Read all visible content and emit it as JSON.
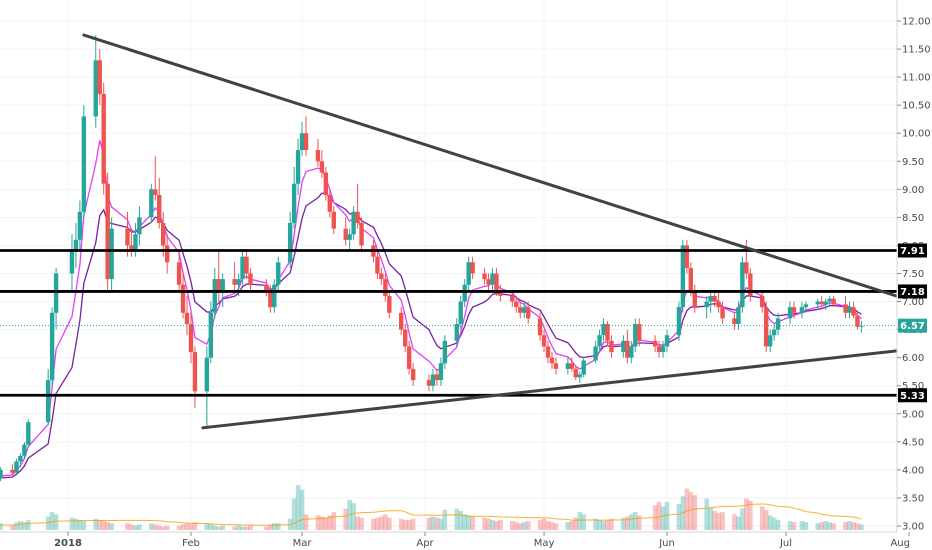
{
  "chart_data": {
    "type": "candlestick",
    "x_labels": [
      "2018",
      "Feb",
      "Mar",
      "Apr",
      "May",
      "Jun",
      "Jul",
      "Aug"
    ],
    "y_ticks": [
      "3.00",
      "3.50",
      "4.00",
      "4.50",
      "5.00",
      "5.50",
      "6.00",
      "6.50",
      "7.00",
      "7.50",
      "8.00",
      "8.50",
      "9.00",
      "9.50",
      "10.00",
      "10.50",
      "11.00",
      "11.50",
      "12.00"
    ],
    "ylim": [
      2.9,
      12.2
    ],
    "grid": true,
    "horizontal_levels": [
      {
        "label": "7.91",
        "value": 7.91
      },
      {
        "label": "7.18",
        "value": 7.18
      },
      {
        "label": "5.33",
        "value": 5.33
      }
    ],
    "last_price": {
      "label": "6.57",
      "value": 6.57
    },
    "trendlines": [
      {
        "name": "upper",
        "start": {
          "date": "2018-01-05",
          "value": 11.75
        },
        "end": {
          "date": "2018-07-31",
          "value": 7.05
        }
      },
      {
        "name": "lower",
        "start": {
          "date": "2018-02-04",
          "value": 4.75
        },
        "end": {
          "date": "2018-07-30",
          "value": 6.13
        }
      }
    ],
    "candles": [
      [
        "2017-12-12",
        3.75,
        3.85,
        3.65,
        3.8
      ],
      [
        "2017-12-13",
        3.8,
        3.95,
        3.75,
        3.9
      ],
      [
        "2017-12-14",
        3.9,
        4.0,
        3.8,
        3.85
      ],
      [
        "2017-12-15",
        3.85,
        4.05,
        3.8,
        4.0
      ],
      [
        "2017-12-18",
        4.0,
        4.1,
        3.9,
        3.95
      ],
      [
        "2017-12-19",
        3.95,
        4.2,
        3.9,
        4.15
      ],
      [
        "2017-12-20",
        4.15,
        4.3,
        4.05,
        4.25
      ],
      [
        "2017-12-21",
        4.25,
        4.5,
        4.2,
        4.45
      ],
      [
        "2017-12-22",
        4.45,
        4.9,
        4.4,
        4.85
      ],
      [
        "2017-12-27",
        4.85,
        5.8,
        4.8,
        5.6
      ],
      [
        "2017-12-28",
        5.6,
        6.9,
        5.5,
        6.8
      ],
      [
        "2017-12-29",
        6.8,
        7.6,
        6.5,
        7.5
      ],
      [
        "2018-01-02",
        7.5,
        8.2,
        7.2,
        7.9
      ],
      [
        "2018-01-03",
        7.9,
        8.4,
        7.6,
        8.1
      ],
      [
        "2018-01-04",
        8.1,
        8.8,
        7.9,
        8.6
      ],
      [
        "2018-01-05",
        8.6,
        10.5,
        8.5,
        10.3
      ],
      [
        "2018-01-08",
        10.3,
        11.75,
        10.1,
        11.3
      ],
      [
        "2018-01-09",
        11.3,
        11.5,
        10.5,
        10.7
      ],
      [
        "2018-01-10",
        10.7,
        10.9,
        8.9,
        9.1
      ],
      [
        "2018-01-11",
        9.1,
        9.3,
        7.2,
        7.4
      ],
      [
        "2018-01-12",
        7.4,
        8.5,
        7.2,
        8.3
      ],
      [
        "2018-01-16",
        8.3,
        8.6,
        7.8,
        8.0
      ],
      [
        "2018-01-17",
        8.0,
        8.3,
        7.8,
        7.9
      ],
      [
        "2018-01-18",
        7.9,
        8.4,
        7.8,
        8.2
      ],
      [
        "2018-01-19",
        8.2,
        8.7,
        8.0,
        8.5
      ],
      [
        "2018-01-22",
        8.5,
        9.1,
        8.4,
        9.0
      ],
      [
        "2018-01-23",
        9.0,
        9.6,
        8.8,
        8.9
      ],
      [
        "2018-01-24",
        8.9,
        9.2,
        8.3,
        8.4
      ],
      [
        "2018-01-25",
        8.4,
        8.6,
        7.8,
        8.0
      ],
      [
        "2018-01-26",
        8.0,
        8.2,
        7.5,
        7.7
      ],
      [
        "2018-01-29",
        7.7,
        7.9,
        7.2,
        7.3
      ],
      [
        "2018-01-30",
        7.3,
        7.5,
        6.7,
        6.8
      ],
      [
        "2018-01-31",
        6.8,
        7.1,
        6.4,
        6.6
      ],
      [
        "2018-02-01",
        6.6,
        6.8,
        5.9,
        6.1
      ],
      [
        "2018-02-02",
        6.1,
        6.2,
        5.1,
        5.4
      ],
      [
        "2018-02-05",
        5.4,
        6.2,
        4.75,
        6.0
      ],
      [
        "2018-02-06",
        6.0,
        7.0,
        5.9,
        6.8
      ],
      [
        "2018-02-07",
        6.8,
        7.6,
        6.7,
        7.4
      ],
      [
        "2018-02-08",
        7.4,
        7.9,
        7.0,
        7.2
      ],
      [
        "2018-02-09",
        7.2,
        7.5,
        6.9,
        7.4
      ],
      [
        "2018-02-12",
        7.4,
        7.7,
        7.2,
        7.3
      ],
      [
        "2018-02-13",
        7.3,
        7.5,
        7.1,
        7.4
      ],
      [
        "2018-02-14",
        7.4,
        7.9,
        7.3,
        7.8
      ],
      [
        "2018-02-15",
        7.8,
        7.9,
        7.4,
        7.5
      ],
      [
        "2018-02-16",
        7.5,
        7.6,
        7.2,
        7.3
      ],
      [
        "2018-02-20",
        7.3,
        7.4,
        7.1,
        7.2
      ],
      [
        "2018-02-21",
        7.2,
        7.3,
        6.8,
        6.9
      ],
      [
        "2018-02-22",
        6.9,
        7.4,
        6.8,
        7.3
      ],
      [
        "2018-02-23",
        7.3,
        7.8,
        7.2,
        7.7
      ],
      [
        "2018-02-26",
        7.7,
        8.6,
        7.6,
        8.4
      ],
      [
        "2018-02-27",
        8.4,
        9.4,
        8.3,
        9.1
      ],
      [
        "2018-02-28",
        9.1,
        9.9,
        8.9,
        9.7
      ],
      [
        "2018-03-01",
        9.7,
        10.2,
        9.6,
        10.0
      ],
      [
        "2018-03-02",
        10.0,
        10.3,
        9.6,
        9.7
      ],
      [
        "2018-03-05",
        9.7,
        9.9,
        9.4,
        9.5
      ],
      [
        "2018-03-06",
        9.5,
        9.7,
        9.2,
        9.3
      ],
      [
        "2018-03-07",
        9.3,
        9.4,
        8.8,
        8.9
      ],
      [
        "2018-03-08",
        8.9,
        9.0,
        8.5,
        8.6
      ],
      [
        "2018-03-09",
        8.6,
        8.7,
        8.2,
        8.3
      ],
      [
        "2018-03-12",
        8.3,
        8.5,
        8.0,
        8.1
      ],
      [
        "2018-03-13",
        8.1,
        8.3,
        7.9,
        8.2
      ],
      [
        "2018-03-14",
        8.2,
        8.7,
        8.1,
        8.6
      ],
      [
        "2018-03-15",
        8.6,
        9.1,
        8.3,
        8.4
      ],
      [
        "2018-03-16",
        8.4,
        8.5,
        7.9,
        8.0
      ],
      [
        "2018-03-19",
        8.0,
        8.1,
        7.7,
        7.8
      ],
      [
        "2018-03-20",
        7.8,
        7.9,
        7.4,
        7.5
      ],
      [
        "2018-03-21",
        7.5,
        7.6,
        7.3,
        7.4
      ],
      [
        "2018-03-22",
        7.4,
        7.5,
        7.0,
        7.1
      ],
      [
        "2018-03-23",
        7.1,
        7.2,
        6.7,
        6.8
      ],
      [
        "2018-03-26",
        6.8,
        6.9,
        6.4,
        6.5
      ],
      [
        "2018-03-27",
        6.5,
        6.6,
        6.1,
        6.2
      ],
      [
        "2018-03-28",
        6.2,
        6.3,
        5.7,
        5.8
      ],
      [
        "2018-03-29",
        5.8,
        5.9,
        5.5,
        5.6
      ],
      [
        "2018-04-02",
        5.6,
        5.7,
        5.4,
        5.5
      ],
      [
        "2018-04-03",
        5.5,
        5.8,
        5.4,
        5.7
      ],
      [
        "2018-04-04",
        5.7,
        5.8,
        5.5,
        5.6
      ],
      [
        "2018-04-05",
        5.6,
        6.0,
        5.5,
        5.9
      ],
      [
        "2018-04-06",
        5.9,
        6.4,
        5.8,
        6.3
      ],
      [
        "2018-04-09",
        6.3,
        6.7,
        6.2,
        6.6
      ],
      [
        "2018-04-10",
        6.6,
        7.1,
        6.5,
        7.0
      ],
      [
        "2018-04-11",
        7.0,
        7.4,
        6.9,
        7.3
      ],
      [
        "2018-04-12",
        7.3,
        7.8,
        7.2,
        7.7
      ],
      [
        "2018-04-13",
        7.7,
        7.8,
        7.4,
        7.5
      ],
      [
        "2018-04-16",
        7.5,
        7.6,
        7.3,
        7.4
      ],
      [
        "2018-04-17",
        7.4,
        7.5,
        7.2,
        7.3
      ],
      [
        "2018-04-18",
        7.3,
        7.6,
        7.2,
        7.5
      ],
      [
        "2018-04-19",
        7.5,
        7.6,
        7.1,
        7.2
      ],
      [
        "2018-04-20",
        7.2,
        7.3,
        7.0,
        7.1
      ],
      [
        "2018-04-23",
        7.1,
        7.2,
        6.9,
        7.0
      ],
      [
        "2018-04-24",
        7.0,
        7.1,
        6.8,
        6.9
      ],
      [
        "2018-04-25",
        6.9,
        7.0,
        6.7,
        6.8
      ],
      [
        "2018-04-26",
        6.8,
        7.0,
        6.7,
        6.9
      ],
      [
        "2018-04-27",
        6.9,
        7.0,
        6.6,
        6.7
      ],
      [
        "2018-04-30",
        6.7,
        6.8,
        6.3,
        6.4
      ],
      [
        "2018-05-01",
        6.4,
        6.5,
        6.1,
        6.2
      ],
      [
        "2018-05-02",
        6.2,
        6.3,
        5.9,
        6.0
      ],
      [
        "2018-05-03",
        6.0,
        6.1,
        5.8,
        5.9
      ],
      [
        "2018-05-04",
        5.9,
        6.0,
        5.7,
        5.8
      ],
      [
        "2018-05-07",
        5.8,
        6.0,
        5.7,
        5.9
      ],
      [
        "2018-05-08",
        5.9,
        6.0,
        5.75,
        5.8
      ],
      [
        "2018-05-09",
        5.8,
        5.85,
        5.6,
        5.65
      ],
      [
        "2018-05-10",
        5.65,
        5.75,
        5.55,
        5.7
      ],
      [
        "2018-05-11",
        5.7,
        6.0,
        5.65,
        5.95
      ],
      [
        "2018-05-14",
        5.95,
        6.3,
        5.9,
        6.2
      ],
      [
        "2018-05-15",
        6.2,
        6.5,
        6.1,
        6.4
      ],
      [
        "2018-05-16",
        6.4,
        6.7,
        6.3,
        6.6
      ],
      [
        "2018-05-17",
        6.6,
        6.65,
        6.2,
        6.3
      ],
      [
        "2018-05-18",
        6.3,
        6.4,
        6.0,
        6.1
      ],
      [
        "2018-05-21",
        6.1,
        6.4,
        6.0,
        6.3
      ],
      [
        "2018-05-22",
        6.3,
        6.5,
        5.9,
        6.0
      ],
      [
        "2018-05-23",
        6.0,
        6.3,
        5.9,
        6.2
      ],
      [
        "2018-05-24",
        6.2,
        6.7,
        6.1,
        6.6
      ],
      [
        "2018-05-25",
        6.6,
        6.7,
        6.2,
        6.3
      ],
      [
        "2018-05-29",
        6.3,
        6.4,
        6.1,
        6.2
      ],
      [
        "2018-05-30",
        6.2,
        6.3,
        6.0,
        6.1
      ],
      [
        "2018-05-31",
        6.1,
        6.3,
        6.0,
        6.2
      ],
      [
        "2018-06-01",
        6.2,
        6.5,
        6.1,
        6.4
      ],
      [
        "2018-06-04",
        6.4,
        7.0,
        6.3,
        6.9
      ],
      [
        "2018-06-05",
        6.9,
        8.1,
        6.8,
        8.0
      ],
      [
        "2018-06-06",
        8.0,
        8.1,
        7.5,
        7.6
      ],
      [
        "2018-06-07",
        7.6,
        7.7,
        7.1,
        7.2
      ],
      [
        "2018-06-08",
        7.2,
        7.3,
        6.8,
        6.9
      ],
      [
        "2018-06-11",
        6.9,
        7.1,
        6.7,
        7.0
      ],
      [
        "2018-06-12",
        7.0,
        7.2,
        6.8,
        7.1
      ],
      [
        "2018-06-13",
        7.1,
        7.2,
        6.9,
        7.0
      ],
      [
        "2018-06-14",
        7.0,
        7.2,
        6.8,
        6.9
      ],
      [
        "2018-06-15",
        6.9,
        7.0,
        6.6,
        6.7
      ],
      [
        "2018-06-18",
        6.7,
        6.8,
        6.5,
        6.6
      ],
      [
        "2018-06-19",
        6.6,
        7.0,
        6.5,
        6.9
      ],
      [
        "2018-06-20",
        6.9,
        7.8,
        6.8,
        7.7
      ],
      [
        "2018-06-21",
        7.7,
        8.1,
        7.4,
        7.5
      ],
      [
        "2018-06-22",
        7.5,
        7.6,
        7.0,
        7.1
      ],
      [
        "2018-06-25",
        7.1,
        7.2,
        6.8,
        6.9
      ],
      [
        "2018-06-26",
        6.9,
        7.0,
        6.1,
        6.2
      ],
      [
        "2018-06-27",
        6.2,
        6.5,
        6.1,
        6.4
      ],
      [
        "2018-06-28",
        6.4,
        6.6,
        6.3,
        6.5
      ],
      [
        "2018-06-29",
        6.5,
        6.8,
        6.4,
        6.7
      ],
      [
        "2018-07-02",
        6.7,
        7.0,
        6.6,
        6.9
      ],
      [
        "2018-07-03",
        6.9,
        7.0,
        6.7,
        6.8
      ],
      [
        "2018-07-05",
        6.8,
        7.0,
        6.7,
        6.9
      ],
      [
        "2018-07-06",
        6.9,
        7.0,
        6.8,
        6.95
      ],
      [
        "2018-07-09",
        6.95,
        7.05,
        6.85,
        7.0
      ],
      [
        "2018-07-10",
        7.0,
        7.1,
        6.9,
        6.95
      ],
      [
        "2018-07-11",
        6.95,
        7.05,
        6.85,
        7.0
      ],
      [
        "2018-07-12",
        7.0,
        7.1,
        6.9,
        7.05
      ],
      [
        "2018-07-13",
        7.05,
        7.1,
        6.9,
        6.95
      ],
      [
        "2018-07-16",
        6.95,
        7.1,
        6.7,
        6.8
      ],
      [
        "2018-07-17",
        6.8,
        7.0,
        6.7,
        6.9
      ],
      [
        "2018-07-18",
        6.9,
        7.0,
        6.7,
        6.75
      ],
      [
        "2018-07-19",
        6.75,
        6.8,
        6.5,
        6.55
      ],
      [
        "2018-07-20",
        6.55,
        6.65,
        6.45,
        6.57
      ]
    ],
    "volume_scale_max": 4.9,
    "volume_axis_ylim_top": 5.0,
    "volumes": [
      0.2,
      0.15,
      0.25,
      0.3,
      0.2,
      0.35,
      0.4,
      0.35,
      0.45,
      0.6,
      0.8,
      0.7,
      0.55,
      0.5,
      0.45,
      0.4,
      0.5,
      0.45,
      0.4,
      0.35,
      0.3,
      0.3,
      0.25,
      0.2,
      0.25,
      0.3,
      0.25,
      0.2,
      0.15,
      0.2,
      0.2,
      0.25,
      0.3,
      0.25,
      0.35,
      0.3,
      0.25,
      0.2,
      0.15,
      0.2,
      0.15,
      0.2,
      0.15,
      0.15,
      0.2,
      0.15,
      0.25,
      0.3,
      0.3,
      0.5,
      1.4,
      2.0,
      1.8,
      0.7,
      0.65,
      0.6,
      0.55,
      0.65,
      0.8,
      0.95,
      1.35,
      1.2,
      0.6,
      0.55,
      0.5,
      0.55,
      0.6,
      0.7,
      0.55,
      0.5,
      0.45,
      0.45,
      0.5,
      0.55,
      0.6,
      0.55,
      0.5,
      0.9,
      0.95,
      0.85,
      0.7,
      0.65,
      0.6,
      0.55,
      0.5,
      0.45,
      0.4,
      0.45,
      0.4,
      0.35,
      0.3,
      0.35,
      0.4,
      0.45,
      0.5,
      0.4,
      0.35,
      0.3,
      0.35,
      0.4,
      0.55,
      0.8,
      0.7,
      0.5,
      0.45,
      0.4,
      0.45,
      0.5,
      0.55,
      0.6,
      0.7,
      0.8,
      0.65,
      1.1,
      1.25,
      1.05,
      1.25,
      1.15,
      1.5,
      1.85,
      1.7,
      1.55,
      1.4,
      1.0,
      0.85,
      0.75,
      0.8,
      0.7,
      0.6,
      0.95,
      1.4,
      1.3,
      1.05,
      0.9,
      0.65,
      0.55,
      0.45,
      0.4,
      0.35,
      0.4,
      0.35,
      0.3,
      0.35,
      0.4,
      0.35,
      0.3,
      0.35,
      0.4,
      0.35,
      0.3,
      0.25
    ],
    "colors": {
      "up": "#26a69a",
      "down": "#ef5350",
      "ma_fast": "#e040fb",
      "ma_slow": "#7b1fa2",
      "trendline": "#424242",
      "level": "#000000",
      "last_price_line": "#26a69a",
      "volume_ma": "#ff9800",
      "grid": "#f0f3fa"
    }
  }
}
